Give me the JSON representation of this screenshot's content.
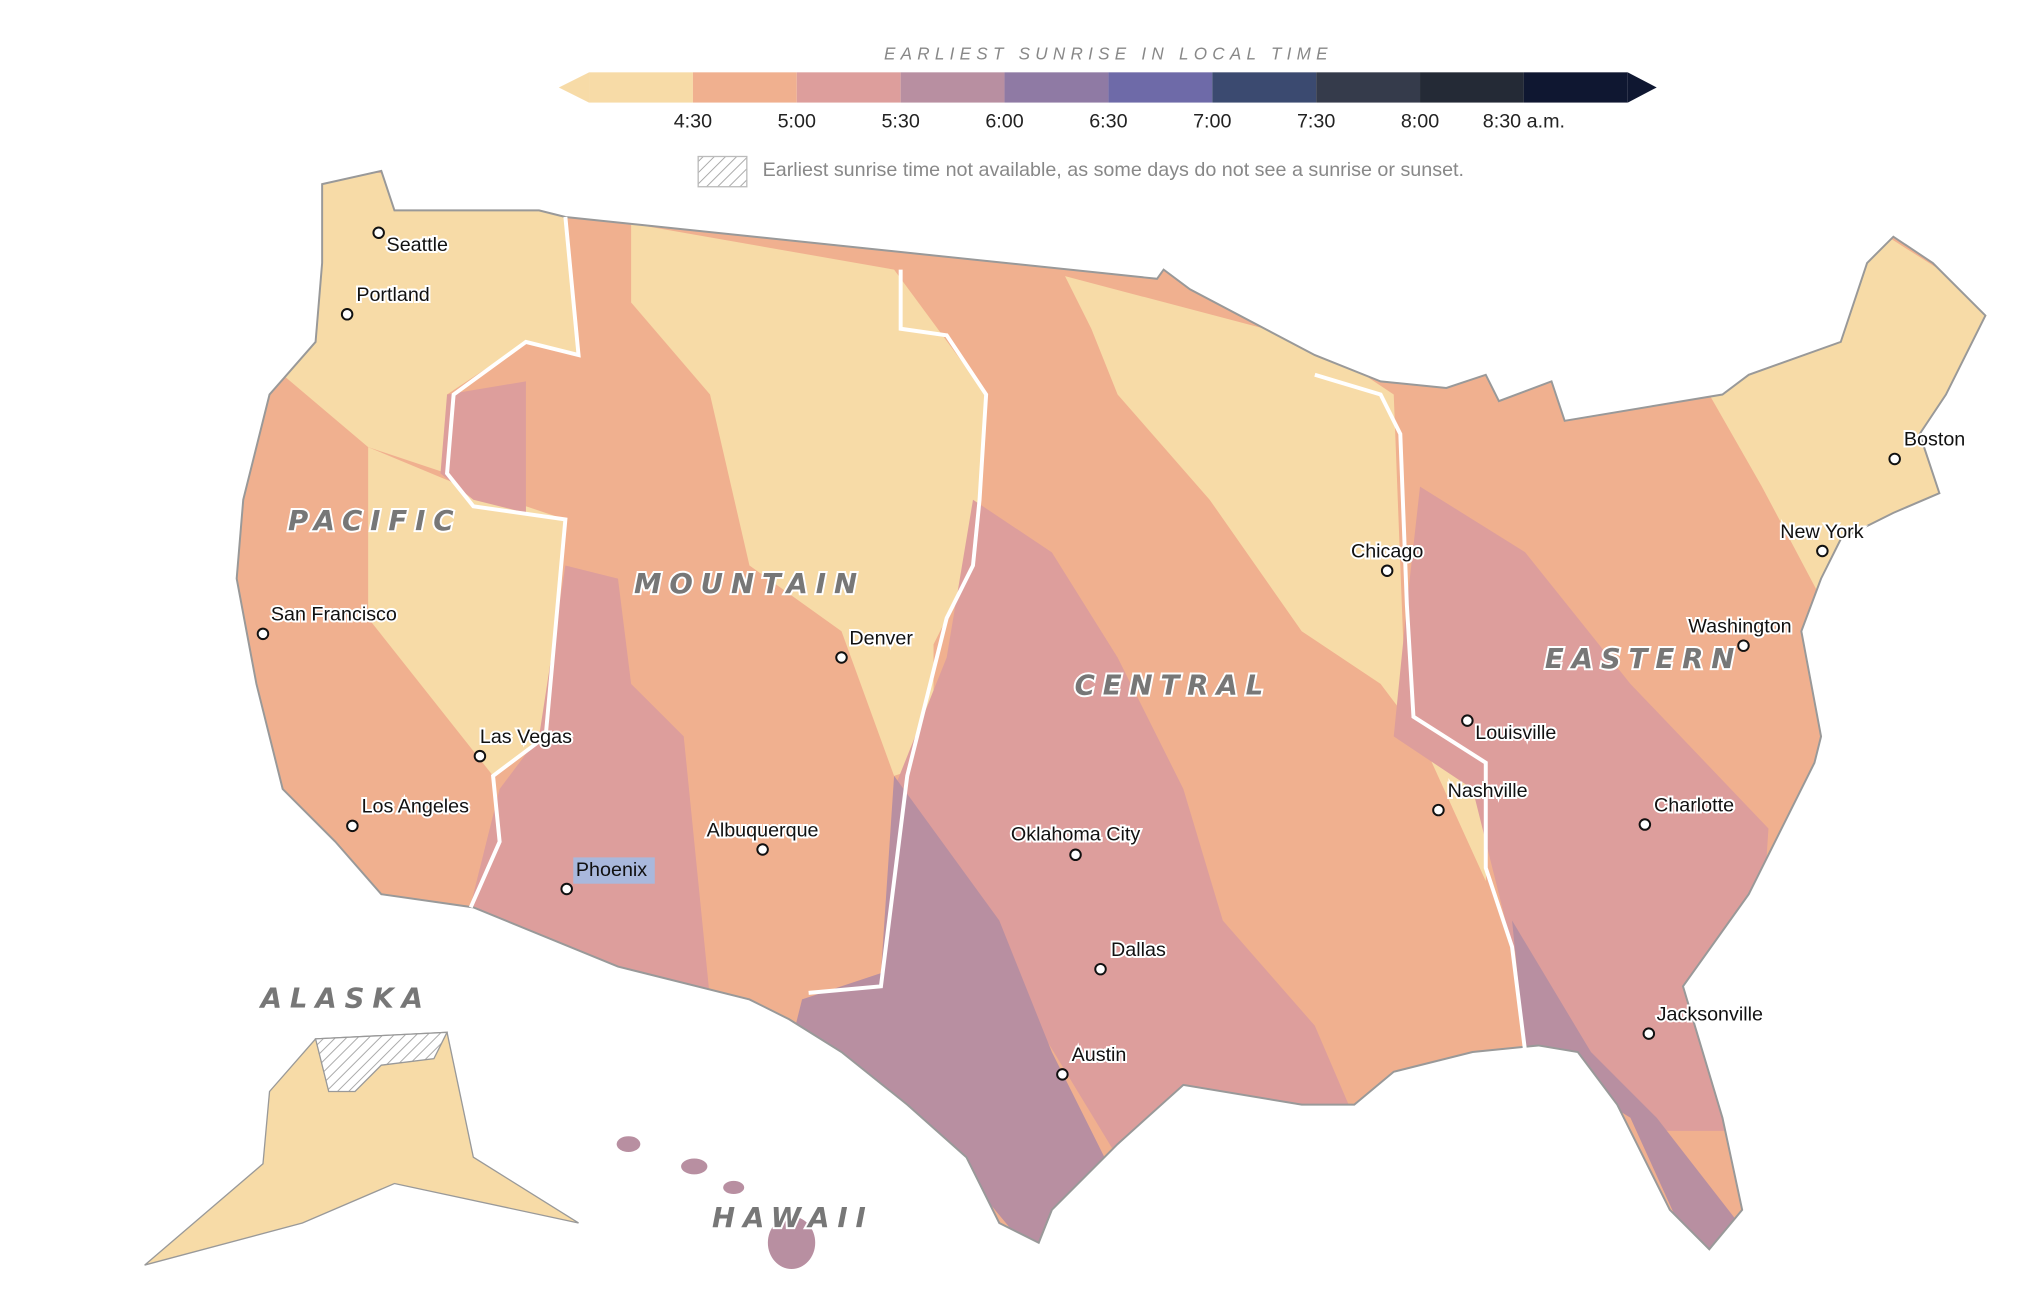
{
  "legend": {
    "title": "EARLIEST SUNRISE IN LOCAL TIME",
    "colors": [
      "#f7dba7",
      "#f0b08f",
      "#dd9e9c",
      "#b88fa1",
      "#8f7aa4",
      "#6e6aa8",
      "#3b4a70",
      "#353b4b",
      "#242a36",
      "#0f1731"
    ],
    "ticks": [
      "4:30",
      "5:00",
      "5:30",
      "6:00",
      "6:30",
      "7:00",
      "7:30",
      "8:00",
      "8:30 a.m."
    ],
    "note": "Earliest sunrise time not available, as some days do not see a sunrise or sunset."
  },
  "zones": [
    "PACIFIC",
    "MOUNTAIN",
    "CENTRAL",
    "EASTERN",
    "ALASKA",
    "HAWAII"
  ],
  "cities": [
    "Seattle",
    "Portland",
    "San Francisco",
    "Las Vegas",
    "Los Angeles",
    "Phoenix",
    "Albuquerque",
    "Denver",
    "Oklahoma City",
    "Dallas",
    "Austin",
    "Chicago",
    "Louisville",
    "Nashville",
    "Charlotte",
    "Jacksonville",
    "Washington",
    "New York",
    "Boston"
  ]
}
